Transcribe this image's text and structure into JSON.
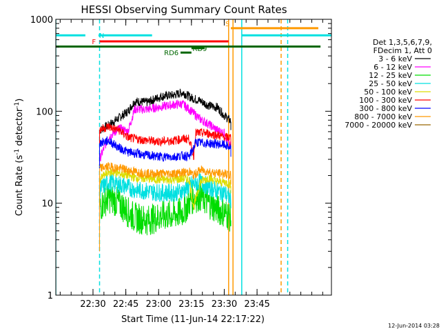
{
  "chart_data": {
    "type": "line",
    "title": "HESSI Observing Summary Count Rates",
    "xlabel": "Start Time (11-Jun-14 22:17:22)",
    "ylabel_main": "Count Rate (s",
    "ylabel_sup1": "-1",
    "ylabel_mid": " detector",
    "ylabel_sup2": "-1",
    "ylabel_end": ")",
    "yscale": "log",
    "ylim": [
      1,
      1000
    ],
    "xlim_min": [
      -5,
      55
    ],
    "y_ticks": [
      {
        "v": 1,
        "label": "1"
      },
      {
        "v": 10,
        "label": "10"
      },
      {
        "v": 100,
        "label": "100"
      },
      {
        "v": 1000,
        "label": "1000"
      }
    ],
    "x_ticks": [
      {
        "t": 13,
        "label": "22:30"
      },
      {
        "t": 28,
        "label": "22:45"
      },
      {
        "t": 43,
        "label": "23:00"
      },
      {
        "t": 58,
        "label": "23:15"
      },
      {
        "t": 73,
        "label": "23:30"
      },
      {
        "t": 88,
        "label": "23:45"
      }
    ],
    "x_minor_step": 5,
    "x_range_minutes": [
      -4,
      122
    ],
    "legend_header": [
      "Det 1,3,5,6,7,9,",
      "FDecim 1, Att 0"
    ],
    "series": [
      {
        "name": "3 - 6 keV",
        "color": "#000000",
        "points": [
          [
            16,
            62
          ],
          [
            20,
            70
          ],
          [
            25,
            85
          ],
          [
            29,
            100
          ],
          [
            32,
            128
          ],
          [
            38,
            125
          ],
          [
            44,
            145
          ],
          [
            50,
            150
          ],
          [
            54,
            160
          ],
          [
            58,
            140
          ],
          [
            62,
            130
          ],
          [
            66,
            115
          ],
          [
            70,
            110
          ],
          [
            73,
            90
          ],
          [
            76,
            78
          ]
        ]
      },
      {
        "name": "6 - 12 keV",
        "color": "#ff00ff",
        "points": [
          [
            16,
            30
          ],
          [
            20,
            52
          ],
          [
            25,
            65
          ],
          [
            29,
            60
          ],
          [
            32,
            105
          ],
          [
            38,
            105
          ],
          [
            44,
            112
          ],
          [
            50,
            118
          ],
          [
            54,
            120
          ],
          [
            58,
            100
          ],
          [
            62,
            82
          ],
          [
            66,
            72
          ],
          [
            70,
            62
          ],
          [
            73,
            58
          ],
          [
            76,
            40
          ]
        ]
      },
      {
        "name": "12 - 25 keV",
        "color": "#00dd00",
        "points": [
          [
            16,
            9
          ],
          [
            20,
            11.5
          ],
          [
            25,
            10
          ],
          [
            29,
            8
          ],
          [
            32,
            7
          ],
          [
            38,
            6.5
          ],
          [
            44,
            7.2
          ],
          [
            50,
            7.5
          ],
          [
            54,
            8
          ],
          [
            58,
            11
          ],
          [
            62,
            12
          ],
          [
            66,
            10
          ],
          [
            70,
            8.5
          ],
          [
            73,
            8
          ],
          [
            76,
            7
          ]
        ]
      },
      {
        "name": "25 - 50 keV",
        "color": "#00e0e0",
        "points": [
          [
            16,
            14
          ],
          [
            20,
            17
          ],
          [
            25,
            16
          ],
          [
            29,
            15
          ],
          [
            32,
            14
          ],
          [
            38,
            13.5
          ],
          [
            44,
            13
          ],
          [
            50,
            13
          ],
          [
            54,
            13.5
          ],
          [
            58,
            16
          ],
          [
            62,
            17
          ],
          [
            66,
            15
          ],
          [
            70,
            13.5
          ],
          [
            73,
            13
          ],
          [
            76,
            11
          ]
        ]
      },
      {
        "name": "50 - 100 keV",
        "color": "#dddd00",
        "points": [
          [
            16,
            18
          ],
          [
            20,
            22
          ],
          [
            25,
            21
          ],
          [
            29,
            20
          ],
          [
            32,
            19
          ],
          [
            38,
            18.5
          ],
          [
            44,
            18
          ],
          [
            50,
            18
          ],
          [
            54,
            18.5
          ],
          [
            57,
            18
          ],
          [
            59,
            9
          ],
          [
            62,
            17
          ],
          [
            66,
            19
          ],
          [
            70,
            17
          ],
          [
            73,
            17
          ],
          [
            76,
            16
          ]
        ]
      },
      {
        "name": "100 - 300 keV",
        "color": "#ff0000",
        "points": [
          [
            16,
            63
          ],
          [
            20,
            68
          ],
          [
            25,
            62
          ],
          [
            29,
            52
          ],
          [
            32,
            50
          ],
          [
            38,
            48
          ],
          [
            44,
            47
          ],
          [
            50,
            48
          ],
          [
            54,
            50
          ],
          [
            57,
            50
          ],
          [
            59,
            32
          ],
          [
            60,
            58
          ],
          [
            64,
            58
          ],
          [
            70,
            55
          ],
          [
            73,
            52
          ],
          [
            76,
            52
          ]
        ]
      },
      {
        "name": "300 - 800 keV",
        "color": "#0000ff",
        "points": [
          [
            16,
            45
          ],
          [
            20,
            48
          ],
          [
            25,
            40
          ],
          [
            29,
            36
          ],
          [
            32,
            35
          ],
          [
            38,
            33
          ],
          [
            44,
            32
          ],
          [
            50,
            32
          ],
          [
            54,
            33
          ],
          [
            57,
            32
          ],
          [
            59,
            40
          ],
          [
            60,
            46
          ],
          [
            64,
            45
          ],
          [
            70,
            44
          ],
          [
            73,
            43
          ],
          [
            76,
            40
          ]
        ]
      },
      {
        "name": "800 - 7000 keV",
        "color": "#ff9900",
        "points": [
          [
            16,
            24
          ],
          [
            20,
            25
          ],
          [
            25,
            24
          ],
          [
            29,
            23
          ],
          [
            32,
            22
          ],
          [
            38,
            21
          ],
          [
            44,
            21
          ],
          [
            50,
            21
          ],
          [
            54,
            21.5
          ],
          [
            57,
            22
          ],
          [
            59,
            20
          ],
          [
            62,
            23
          ],
          [
            66,
            22
          ],
          [
            70,
            21
          ],
          [
            73,
            21
          ],
          [
            76,
            20
          ]
        ]
      },
      {
        "name": "7000 - 20000 keV",
        "color": "#996600",
        "points": []
      }
    ],
    "flags": [
      {
        "label": "N",
        "label_color": "#00e0e0",
        "color": "#00e0e0",
        "segments": [
          [
            -4,
            9.5
          ],
          [
            15.5,
            40
          ],
          [
            81,
            122
          ]
        ],
        "level": 670,
        "label_t": 15.8,
        "label_above": false
      },
      {
        "label": "F",
        "label_color": "#ff0000",
        "color": "#ff0000",
        "segments": [
          [
            16,
            75
          ]
        ],
        "level": 575,
        "label_t": 12.5,
        "label_above": false
      },
      {
        "label": "S",
        "label_color": "#ff9900",
        "color": "#ff9900",
        "segments": [
          [
            76,
            116
          ]
        ],
        "level": 800,
        "label_t": 73.5,
        "label_above": true
      },
      {
        "label": "",
        "label_color": "#006600",
        "color": "#006600",
        "segments": [
          [
            -4,
            117
          ]
        ],
        "level": 505,
        "label_t": 0,
        "label_above": false
      },
      {
        "label": "RD6",
        "label_color": "#006600",
        "color": "#006600",
        "segments": [
          [
            53,
            58
          ]
        ],
        "level": 435,
        "label_t": 45.5,
        "label_above": false
      },
      {
        "label": "RD9",
        "label_color": "#006600",
        "color": "#006600",
        "segments": [
          [
            58,
            64
          ]
        ],
        "level": 485,
        "label_t": 58.5,
        "label_above": false
      }
    ],
    "vlines": [
      {
        "t": -4,
        "color": "#00e0e0",
        "dashed": false
      },
      {
        "t": 16,
        "color": "#00e0e0",
        "dashed": true
      },
      {
        "t": 75,
        "color": "#ff9900",
        "dashed": false
      },
      {
        "t": 77,
        "color": "#ff9900",
        "dashed": false
      },
      {
        "t": 81,
        "color": "#00e0e0",
        "dashed": false
      },
      {
        "t": 99,
        "color": "#ff9900",
        "dashed": true
      },
      {
        "t": 102,
        "color": "#00e0e0",
        "dashed": true
      }
    ]
  },
  "footer_timestamp": "12-Jun-2014 03:28"
}
